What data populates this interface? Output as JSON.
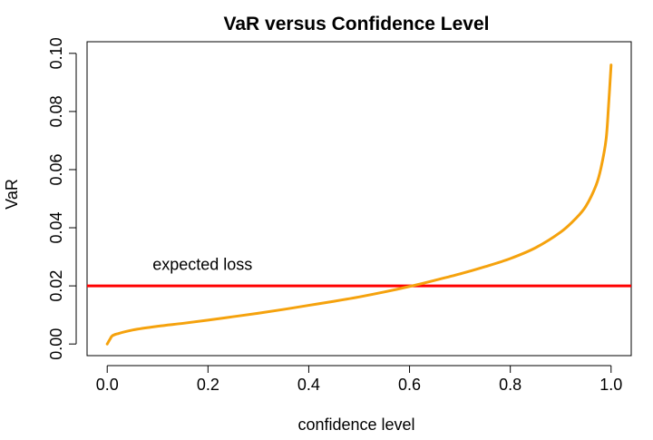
{
  "chart_data": {
    "type": "line",
    "title": "VaR versus Confidence Level",
    "xlabel": "confidence level",
    "ylabel": "VaR",
    "xlim": [
      -0.04,
      1.04
    ],
    "ylim": [
      -0.004,
      0.104
    ],
    "x_ticks": [
      0.0,
      0.2,
      0.4,
      0.6,
      0.8,
      1.0
    ],
    "x_tick_labels": [
      "0.0",
      "0.2",
      "0.4",
      "0.6",
      "0.8",
      "1.0"
    ],
    "y_ticks": [
      0.0,
      0.02,
      0.04,
      0.06,
      0.08,
      0.1
    ],
    "y_tick_labels": [
      "0.00",
      "0.02",
      "0.04",
      "0.06",
      "0.08",
      "0.10"
    ],
    "grid": false,
    "series": [
      {
        "color": "#f5a20d",
        "x": [
          0.0,
          0.005,
          0.01,
          0.02,
          0.05,
          0.1,
          0.15,
          0.2,
          0.25,
          0.3,
          0.35,
          0.4,
          0.45,
          0.5,
          0.55,
          0.6,
          0.65,
          0.7,
          0.75,
          0.8,
          0.85,
          0.9,
          0.93,
          0.95,
          0.97,
          0.98,
          0.99,
          0.995,
          1.0
        ],
        "y": [
          0.0,
          0.0015,
          0.0028,
          0.0035,
          0.0048,
          0.0061,
          0.0071,
          0.0082,
          0.0094,
          0.0106,
          0.0119,
          0.0133,
          0.0147,
          0.0162,
          0.0179,
          0.0198,
          0.0219,
          0.0241,
          0.0266,
          0.0294,
          0.0331,
          0.0385,
          0.0432,
          0.0474,
          0.0545,
          0.0606,
          0.0703,
          0.082,
          0.096
        ]
      }
    ],
    "reference_lines": [
      {
        "orientation": "horizontal",
        "y": 0.02,
        "color": "#ff0000"
      }
    ],
    "annotations": [
      {
        "text": "expected loss",
        "x": 0.09,
        "y": 0.0255
      }
    ]
  }
}
